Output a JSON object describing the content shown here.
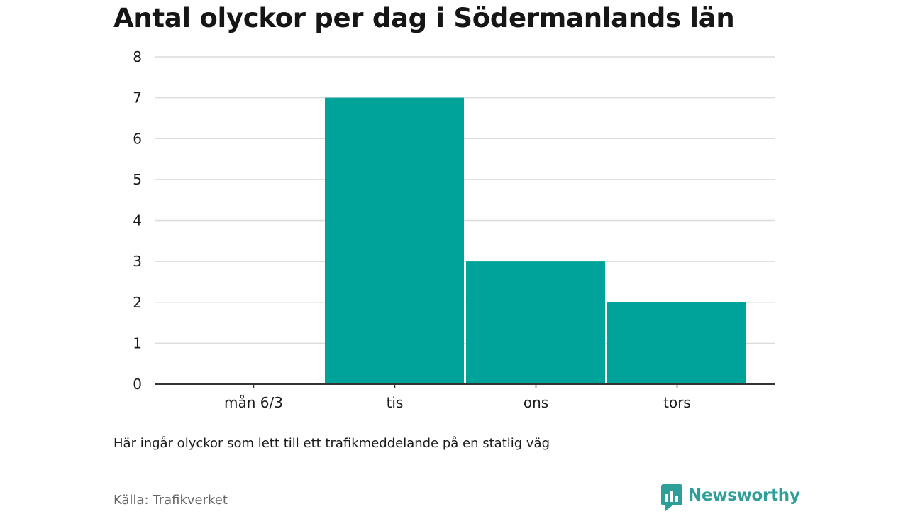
{
  "title": "Antal olyckor per dag i Södermanlands län",
  "note": "Här ingår olyckor som lett till ett trafikmeddelande på en statlig väg",
  "source": "Källa: Trafikverket",
  "brand": {
    "name": "Newsworthy",
    "icon": "newsworthy-logo-icon",
    "color": "#2e9e98"
  },
  "chart_data": {
    "type": "bar",
    "categories": [
      "mån 6/3",
      "tis",
      "ons",
      "tors"
    ],
    "values": [
      0,
      7,
      3,
      2
    ],
    "ylim": [
      0,
      8
    ],
    "yticks": [
      "0",
      "1",
      "2",
      "3",
      "4",
      "5",
      "6",
      "7",
      "8"
    ],
    "grid": true,
    "bar_color": "#00a39a",
    "xlabel": "",
    "ylabel": ""
  }
}
